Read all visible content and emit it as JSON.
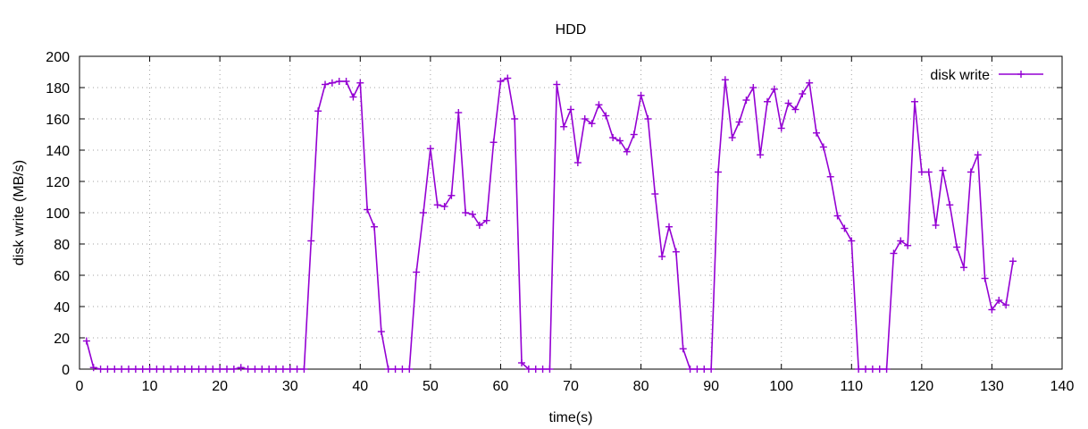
{
  "chart_data": {
    "type": "line",
    "title": "HDD",
    "xlabel": "time(s)",
    "ylabel": "disk write (MB/s)",
    "xlim": [
      0,
      140
    ],
    "ylim": [
      0,
      200
    ],
    "xticks": [
      0,
      10,
      20,
      30,
      40,
      50,
      60,
      70,
      80,
      90,
      100,
      110,
      120,
      130,
      140
    ],
    "yticks": [
      0,
      20,
      40,
      60,
      80,
      100,
      120,
      140,
      160,
      180,
      200
    ],
    "grid": true,
    "legend_position": "top-right",
    "series": [
      {
        "name": "disk write",
        "color": "#9400d3",
        "marker": "plus",
        "x": [
          1,
          2,
          3,
          4,
          5,
          6,
          7,
          8,
          9,
          10,
          11,
          12,
          13,
          14,
          15,
          16,
          17,
          18,
          19,
          20,
          21,
          22,
          23,
          24,
          25,
          26,
          27,
          28,
          29,
          30,
          31,
          32,
          33,
          34,
          35,
          36,
          37,
          38,
          39,
          40,
          41,
          42,
          43,
          44,
          45,
          46,
          47,
          48,
          49,
          50,
          51,
          52,
          53,
          54,
          55,
          56,
          57,
          58,
          59,
          60,
          61,
          62,
          63,
          64,
          65,
          66,
          67,
          68,
          69,
          70,
          71,
          72,
          73,
          74,
          75,
          76,
          77,
          78,
          79,
          80,
          81,
          82,
          83,
          84,
          85,
          86,
          87,
          88,
          89,
          90,
          91,
          92,
          93,
          94,
          95,
          96,
          97,
          98,
          99,
          100,
          101,
          102,
          103,
          104,
          105,
          106,
          107,
          108,
          109,
          110,
          111,
          112,
          113,
          114,
          115,
          116,
          117,
          118,
          119,
          120,
          121,
          122,
          123,
          124,
          125,
          126,
          127,
          128,
          129,
          130,
          131,
          132,
          133
        ],
        "values": [
          18,
          1,
          0,
          0,
          0,
          0,
          0,
          0,
          0,
          0,
          0,
          0,
          0,
          0,
          0,
          0,
          0,
          0,
          0,
          0,
          0,
          0,
          1,
          0,
          0,
          0,
          0,
          0,
          0,
          0,
          0,
          0,
          82,
          165,
          182,
          183,
          184,
          184,
          174,
          183,
          102,
          91,
          24,
          0,
          0,
          0,
          0,
          62,
          100,
          141,
          105,
          104,
          111,
          164,
          100,
          99,
          92,
          95,
          145,
          184,
          186,
          160,
          4,
          0,
          0,
          0,
          0,
          182,
          155,
          166,
          132,
          160,
          157,
          169,
          162,
          148,
          146,
          139,
          150,
          175,
          160,
          112,
          72,
          91,
          75,
          13,
          0,
          0,
          0,
          0,
          126,
          185,
          148,
          158,
          172,
          180,
          137,
          171,
          179,
          154,
          170,
          166,
          176,
          183,
          151,
          142,
          123,
          98,
          90,
          82,
          0,
          0,
          0,
          0,
          0,
          74,
          82,
          79,
          171,
          126,
          126,
          92,
          127,
          105,
          78,
          65,
          126,
          137,
          58,
          38,
          44,
          41,
          69
        ]
      }
    ]
  }
}
